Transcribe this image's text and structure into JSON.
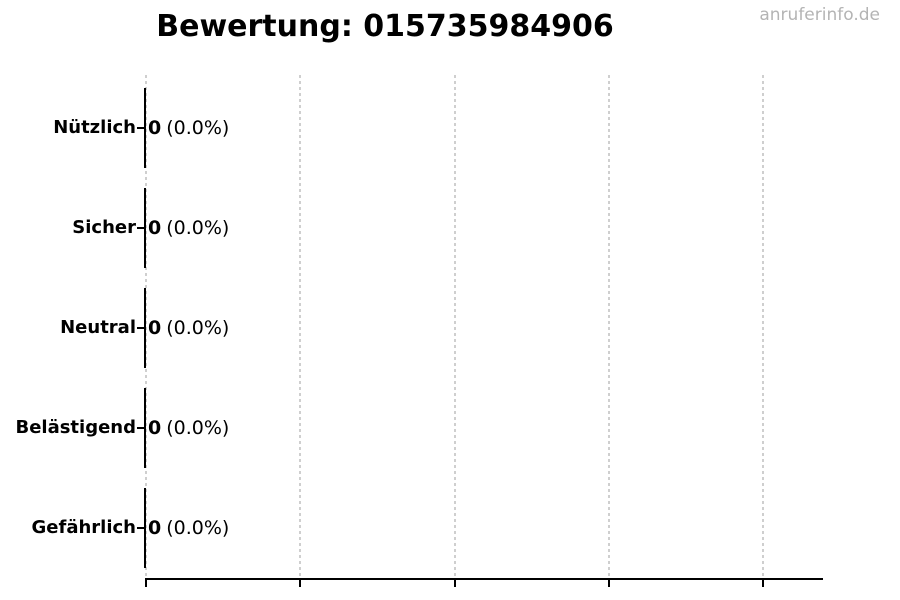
{
  "title": "Bewertung: 015735984906",
  "watermark": "anruferinfo.de",
  "chart_data": {
    "type": "bar",
    "orientation": "horizontal",
    "title": "Bewertung: 015735984906",
    "categories": [
      "Nützlich",
      "Sicher",
      "Neutral",
      "Belästigend",
      "Gefährlich"
    ],
    "values": [
      0,
      0,
      0,
      0,
      0
    ],
    "value_labels": [
      "0",
      "0",
      "0",
      "0",
      "0"
    ],
    "percent_labels": [
      "(0.0%)",
      "(0.0%)",
      "(0.0%)",
      "(0.0%)",
      "(0.0%)"
    ],
    "xlabel": "",
    "ylabel": "",
    "xlim": [
      0,
      1
    ],
    "x_tick_labels": [
      "",
      "",
      "",
      "",
      ""
    ],
    "grid": "vertical-dashed",
    "legend": "none"
  },
  "colors": {
    "background": "#ffffff",
    "text": "#000000",
    "axis": "#000000",
    "gridline": "#cfcfcf",
    "watermark": "#b4b4b4"
  }
}
